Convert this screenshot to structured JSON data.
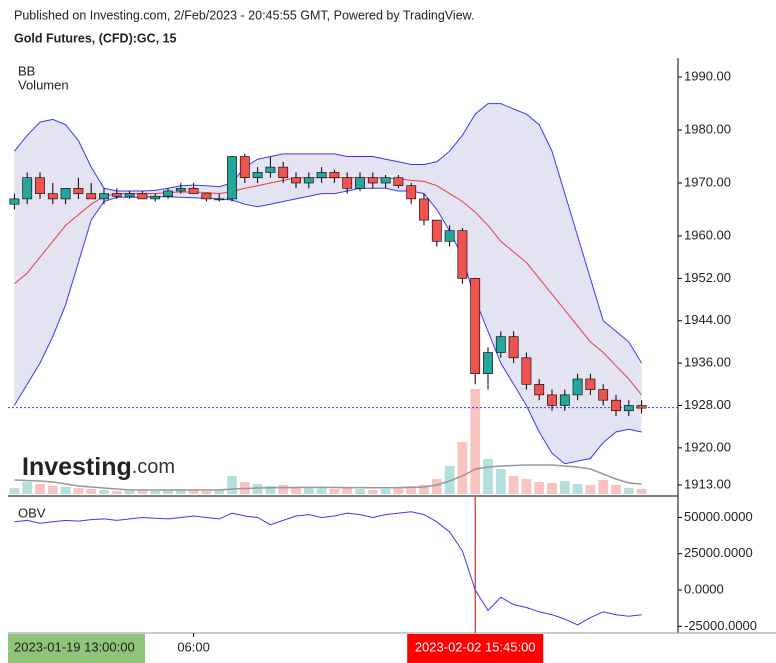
{
  "header": {
    "published": "Published on Investing.com, 2/Feb/2023 - 20:45:55 GMT, Powered by TradingView.",
    "symbol": "Gold Futures, (CFD):GC, 15"
  },
  "logo": {
    "main": "Investing",
    "suffix": ".com"
  },
  "chart_data": [
    {
      "type": "candlestick",
      "categories": [
        "2023-01-19 13:00:00",
        null,
        null,
        null,
        null,
        null,
        null,
        null,
        null,
        null,
        null,
        null,
        null,
        null,
        "06:00",
        null,
        null,
        null,
        null,
        null,
        null,
        null,
        null,
        null,
        null,
        null,
        null,
        null,
        null,
        null,
        null,
        null,
        null,
        null,
        null,
        null,
        "2023-02-02 15:45:00",
        null,
        null,
        null,
        null,
        null,
        null,
        null,
        null,
        null,
        null,
        null,
        null,
        null
      ],
      "ohlc": [
        [
          1966,
          1968,
          1965,
          1967
        ],
        [
          1967,
          1972,
          1966,
          1971
        ],
        [
          1971,
          1972,
          1967,
          1968
        ],
        [
          1968,
          1970,
          1966,
          1967
        ],
        [
          1967,
          1969,
          1966,
          1969
        ],
        [
          1969,
          1971,
          1967,
          1968
        ],
        [
          1968,
          1970,
          1967,
          1967
        ],
        [
          1967,
          1969,
          1966,
          1968
        ],
        [
          1968,
          1969,
          1967,
          1967.5
        ],
        [
          1967.5,
          1968.5,
          1967,
          1968
        ],
        [
          1968,
          1968.5,
          1967,
          1967
        ],
        [
          1967,
          1968,
          1966.5,
          1967.5
        ],
        [
          1967.5,
          1969,
          1967,
          1968.5
        ],
        [
          1968.5,
          1970,
          1968,
          1969
        ],
        [
          1969,
          1970,
          1968,
          1968
        ],
        [
          1968,
          1968,
          1966.5,
          1967
        ],
        [
          1967,
          1968,
          1966.5,
          1967
        ],
        [
          1967,
          1975,
          1966.5,
          1975
        ],
        [
          1975,
          1975.5,
          1970,
          1971
        ],
        [
          1971,
          1973,
          1970,
          1972
        ],
        [
          1972,
          1975,
          1971,
          1973
        ],
        [
          1973,
          1974,
          1970,
          1971
        ],
        [
          1971,
          1972,
          1969,
          1970
        ],
        [
          1970,
          1972,
          1969,
          1971
        ],
        [
          1971,
          1973,
          1970,
          1972
        ],
        [
          1972,
          1972.5,
          1970,
          1971
        ],
        [
          1971,
          1972,
          1968,
          1969
        ],
        [
          1969,
          1972,
          1968.5,
          1971
        ],
        [
          1971,
          1972,
          1969,
          1970
        ],
        [
          1970,
          1971.5,
          1969,
          1971
        ],
        [
          1971,
          1971.5,
          1969,
          1969.5
        ],
        [
          1969.5,
          1970,
          1966,
          1967
        ],
        [
          1967,
          1968,
          1962,
          1963
        ],
        [
          1963,
          1963,
          1958,
          1959
        ],
        [
          1959,
          1962,
          1958,
          1961
        ],
        [
          1961,
          1961.5,
          1951,
          1952
        ],
        [
          1952,
          1952,
          1932,
          1934
        ],
        [
          1934,
          1939,
          1931,
          1938
        ],
        [
          1938,
          1942,
          1937,
          1941
        ],
        [
          1941,
          1942,
          1936,
          1937
        ],
        [
          1937,
          1938,
          1931,
          1932
        ],
        [
          1932,
          1933,
          1929,
          1930
        ],
        [
          1930,
          1931,
          1927,
          1928
        ],
        [
          1928,
          1931,
          1927,
          1930
        ],
        [
          1930,
          1934,
          1929,
          1933
        ],
        [
          1933,
          1934,
          1930,
          1931
        ],
        [
          1931,
          1932,
          1928,
          1929
        ],
        [
          1929,
          1930,
          1926,
          1927
        ],
        [
          1927,
          1929,
          1926,
          1928
        ],
        [
          1928,
          1929,
          1926.5,
          1927.5
        ]
      ],
      "up_color": "#26a69a",
      "down_color": "#ef5350",
      "bands": {
        "name": "BB",
        "color": "#3a3aee",
        "middle_color": "#e84040",
        "fill": "#e3e3f1",
        "upper": [
          1976,
          1979,
          1981.5,
          1982,
          1981,
          1978,
          1973,
          1969,
          1968.5,
          1968.5,
          1968.5,
          1968.6,
          1969,
          1969.5,
          1969.6,
          1969.5,
          1969.3,
          1970,
          1973,
          1974.5,
          1975,
          1975.5,
          1975.5,
          1975.5,
          1975.5,
          1975.5,
          1975,
          1975,
          1975,
          1974.5,
          1974,
          1973.5,
          1973.5,
          1974,
          1976,
          1979,
          1983,
          1985,
          1985,
          1984,
          1983,
          1981,
          1976,
          1968,
          1960,
          1952,
          1944,
          1942,
          1940,
          1936
        ],
        "middle": [
          1951,
          1953,
          1956,
          1959,
          1962,
          1964,
          1966,
          1967.5,
          1968,
          1968,
          1968,
          1968,
          1968.2,
          1968.3,
          1968.3,
          1968.2,
          1968,
          1968.4,
          1969,
          1969.5,
          1970,
          1970.5,
          1971,
          1971,
          1971,
          1971,
          1971,
          1971,
          1971,
          1971,
          1970.8,
          1970.5,
          1970.3,
          1969.5,
          1968,
          1966.5,
          1964.5,
          1962,
          1959,
          1957,
          1955,
          1952,
          1949,
          1946,
          1943,
          1940,
          1938,
          1935.5,
          1933,
          1930
        ],
        "lower": [
          1928,
          1932,
          1936,
          1941,
          1947,
          1955,
          1963,
          1966.5,
          1967.3,
          1967.3,
          1967.3,
          1967.4,
          1967.4,
          1967.3,
          1967.2,
          1967.1,
          1967,
          1966.8,
          1966,
          1965.5,
          1966,
          1966.5,
          1967,
          1967.5,
          1968,
          1968,
          1968.5,
          1969,
          1969,
          1969,
          1968.5,
          1968.5,
          1968,
          1965,
          1961,
          1956,
          1948,
          1942,
          1936,
          1932,
          1928,
          1923,
          1919,
          1917,
          1917.5,
          1918,
          1921,
          1923,
          1923.5,
          1923
        ]
      },
      "volume": {
        "name": "Volumen",
        "ma_color": "#999999",
        "values": [
          60,
          120,
          100,
          80,
          70,
          60,
          50,
          40,
          30,
          30,
          40,
          30,
          40,
          50,
          40,
          30,
          40,
          180,
          120,
          100,
          80,
          90,
          70,
          60,
          60,
          50,
          60,
          50,
          40,
          50,
          60,
          80,
          90,
          150,
          280,
          520,
          1050,
          350,
          250,
          180,
          150,
          120,
          110,
          130,
          100,
          90,
          140,
          90,
          60,
          50
        ],
        "ma": [
          140,
          135,
          130,
          120,
          100,
          80,
          70,
          60,
          50,
          40,
          40,
          40,
          40,
          40,
          40,
          40,
          40,
          50,
          55,
          60,
          62,
          64,
          65,
          66,
          66,
          65,
          64,
          64,
          63,
          63,
          64,
          66,
          70,
          90,
          130,
          180,
          250,
          270,
          280,
          285,
          290,
          290,
          290,
          280,
          270,
          250,
          200,
          150,
          110,
          100
        ]
      },
      "price_line": 1927.6,
      "price_line_color": "#2f3fd8",
      "crosshair": 36,
      "ylim": [
        1911.1,
        1993.6
      ],
      "yticks": [
        {
          "value": 1990,
          "label": "1990.00"
        },
        {
          "value": 1980,
          "label": "1980.00"
        },
        {
          "value": 1970,
          "label": "1970.00"
        },
        {
          "value": 1960,
          "label": "1960.00"
        },
        {
          "value": 1952,
          "label": "1952.00"
        },
        {
          "value": 1944,
          "label": "1944.00"
        },
        {
          "value": 1936,
          "label": "1936.00"
        },
        {
          "value": 1928,
          "label": "1928.00"
        },
        {
          "value": 1920,
          "label": "1920.00"
        },
        {
          "value": 1913,
          "label": "1913.00"
        }
      ]
    },
    {
      "type": "line",
      "series": [
        {
          "name": "OBV",
          "color": "#3a3aee",
          "values": [
            47000,
            48000,
            46000,
            47000,
            48000,
            47500,
            48500,
            49000,
            48000,
            49000,
            50000,
            49500,
            49000,
            50000,
            51000,
            50000,
            49000,
            53000,
            51000,
            50000,
            45000,
            48000,
            51000,
            52000,
            50000,
            51000,
            53000,
            52000,
            50000,
            52000,
            53000,
            54000,
            52000,
            47000,
            40000,
            27000,
            0,
            -14000,
            -5000,
            -10000,
            -12000,
            -15000,
            -17000,
            -20000,
            -24000,
            -19000,
            -15000,
            -17000,
            -18000,
            -17000
          ]
        }
      ],
      "ylim": [
        -29600,
        64100
      ],
      "yticks": [
        {
          "value": 50000,
          "label": "50000.0000"
        },
        {
          "value": 25000,
          "label": "25000.0000"
        },
        {
          "value": 0,
          "label": "0.0000"
        },
        {
          "value": -25000,
          "label": "-25000.0000"
        }
      ]
    }
  ]
}
